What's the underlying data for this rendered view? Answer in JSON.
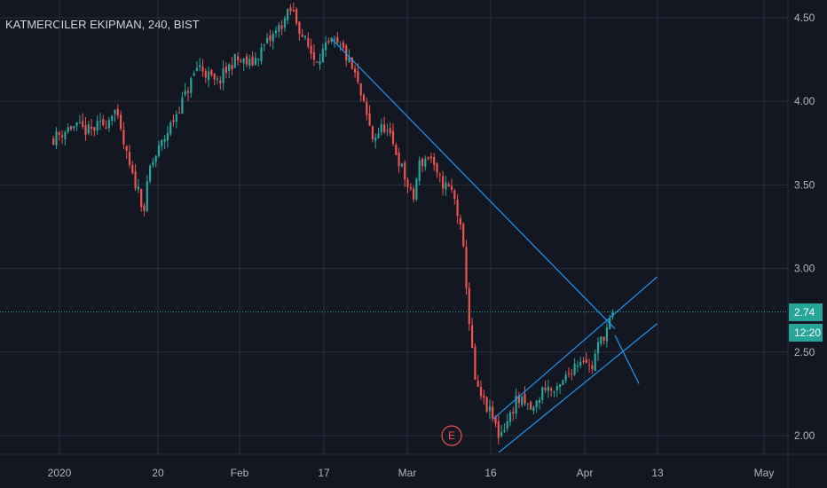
{
  "header": {
    "title": "KATMERCILER EKIPMAN, 240, BIST"
  },
  "price_tag": {
    "last_price": "2.74",
    "countdown": "12:20"
  },
  "earnings_marker": {
    "label": "E"
  },
  "colors": {
    "background": "#131722",
    "grid": "#2a2e39",
    "up": "#26a69a",
    "down": "#ef5350",
    "trendline": "#2196f3",
    "last_price_line": "#26a69a",
    "earnings": "#ef5350"
  },
  "chart_data": {
    "type": "candlestick",
    "title": "KATMERCILER EKIPMAN, 240, BIST",
    "y_ticks": [
      "4.50",
      "4.00",
      "3.50",
      "3.00",
      "2.50",
      "2.00"
    ],
    "x_ticks": [
      "2020",
      "20",
      "Feb",
      "17",
      "Mar",
      "16",
      "Apr",
      "13",
      "May"
    ],
    "ylim": [
      1.88,
      4.62
    ],
    "last_price": 2.74,
    "grid": true,
    "close_path": [
      [
        "Dec 31",
        3.78
      ],
      [
        "Jan 3",
        3.85
      ],
      [
        "Jan 6",
        3.82
      ],
      [
        "Jan 9",
        3.88
      ],
      [
        "Jan 10",
        3.97
      ],
      [
        "Jan 13",
        3.55
      ],
      [
        "Jan 14",
        3.48
      ],
      [
        "Jan 15",
        3.35
      ],
      [
        "Jan 16",
        3.6
      ],
      [
        "Jan 20",
        3.9
      ],
      [
        "Jan 22",
        4.05
      ],
      [
        "Jan 24",
        4.22
      ],
      [
        "Jan 27",
        4.1
      ],
      [
        "Jan 30",
        4.25
      ],
      [
        "Feb 3",
        4.22
      ],
      [
        "Feb 5",
        4.32
      ],
      [
        "Feb 7",
        4.4
      ],
      [
        "Feb 10",
        4.55
      ],
      [
        "Feb 12",
        4.38
      ],
      [
        "Feb 14",
        4.25
      ],
      [
        "Feb 17",
        4.35
      ],
      [
        "Feb 19",
        4.3
      ],
      [
        "Feb 21",
        4.15
      ],
      [
        "Feb 24",
        3.78
      ],
      [
        "Feb 26",
        3.85
      ],
      [
        "Feb 28",
        3.7
      ],
      [
        "Mar 2",
        3.4
      ],
      [
        "Mar 3",
        3.62
      ],
      [
        "Mar 5",
        3.68
      ],
      [
        "Mar 6",
        3.55
      ],
      [
        "Mar 9",
        3.45
      ],
      [
        "Mar 10",
        3.3
      ],
      [
        "Mar 11",
        3.05
      ],
      [
        "Mar 12",
        2.6
      ],
      [
        "Mar 13",
        2.28
      ],
      [
        "Mar 16",
        2.1
      ],
      [
        "Mar 17",
        2.0
      ],
      [
        "Mar 19",
        2.12
      ],
      [
        "Mar 20",
        2.22
      ],
      [
        "Mar 23",
        2.15
      ],
      [
        "Mar 25",
        2.3
      ],
      [
        "Mar 27",
        2.25
      ],
      [
        "Mar 30",
        2.42
      ],
      [
        "Apr 1",
        2.48
      ],
      [
        "Apr 2",
        2.38
      ],
      [
        "Apr 3",
        2.52
      ],
      [
        "Apr 6",
        2.74
      ]
    ],
    "trendlines": [
      {
        "name": "descending resistance",
        "from": [
          "Feb 17",
          4.37
        ],
        "to": [
          "Apr 6",
          2.64
        ]
      },
      {
        "name": "channel upper",
        "from": [
          "Mar 16",
          2.1
        ],
        "to": [
          "Apr 13",
          2.95
        ]
      },
      {
        "name": "channel lower",
        "from": [
          "Mar 17",
          1.9
        ],
        "to": [
          "Apr 13",
          2.67
        ]
      },
      {
        "name": "resistance extension",
        "from": [
          "Apr 6",
          2.6
        ],
        "to": [
          "Apr 10",
          2.31
        ]
      }
    ]
  }
}
